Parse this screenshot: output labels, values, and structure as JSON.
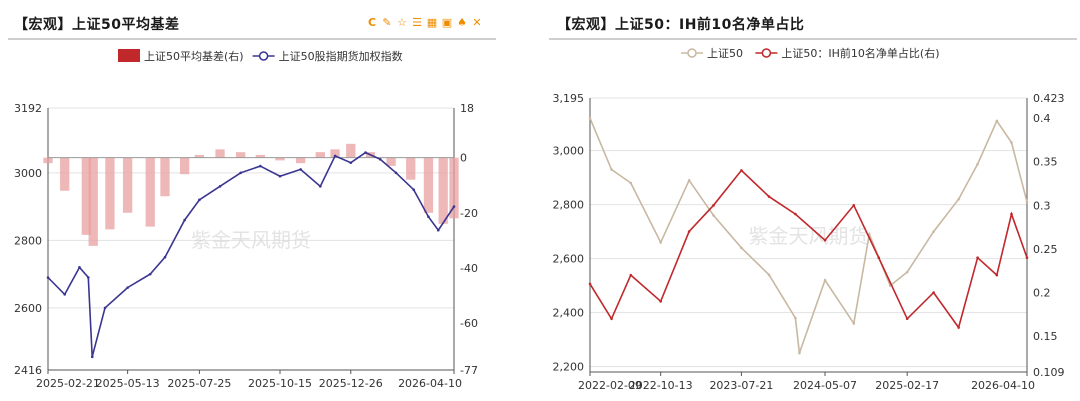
{
  "left": {
    "title": "【宏观】上证50平均基差",
    "toolbar": [
      {
        "name": "refresh-icon",
        "glyph": "C"
      },
      {
        "name": "edit-icon",
        "glyph": "✎"
      },
      {
        "name": "star-icon",
        "glyph": "☆"
      },
      {
        "name": "list-icon",
        "glyph": "☰"
      },
      {
        "name": "table-icon",
        "glyph": "▦"
      },
      {
        "name": "image-download-icon",
        "glyph": "▣"
      },
      {
        "name": "bell-icon",
        "glyph": "♠"
      },
      {
        "name": "expand-icon",
        "glyph": "✕"
      }
    ],
    "chart_data": {
      "type": "bar+line",
      "title": "【宏观】上证50平均基差",
      "watermark": "紫金天风期货",
      "legend_position": "top-center",
      "x_ticks": [
        "2025-02-21",
        "2025-05-13",
        "2025-07-25",
        "2025-10-15",
        "2025-12-26",
        "2026-04-10"
      ],
      "left_axis": {
        "ticks": [
          "3192",
          "3000",
          "2800",
          "2600",
          "2416"
        ],
        "ylim": [
          2416,
          3192
        ]
      },
      "right_axis": {
        "ticks": [
          "18",
          "0",
          "-20",
          "-40",
          "-60",
          "-77"
        ],
        "ylim": [
          -77,
          18
        ]
      },
      "series": [
        {
          "name": "上证50平均基差(右)",
          "type": "bar",
          "axis": "right",
          "color": "#e8a0a0",
          "x": [
            "2025-02-21",
            "2025-03-10",
            "2025-04-01",
            "2025-04-08",
            "2025-04-25",
            "2025-05-13",
            "2025-06-05",
            "2025-06-20",
            "2025-07-10",
            "2025-07-25",
            "2025-08-15",
            "2025-09-05",
            "2025-09-25",
            "2025-10-15",
            "2025-11-05",
            "2025-11-25",
            "2025-12-10",
            "2025-12-26",
            "2026-01-15",
            "2026-02-05",
            "2026-02-25",
            "2026-03-15",
            "2026-03-30",
            "2026-04-10"
          ],
          "values": [
            -2,
            -12,
            -28,
            -32,
            -26,
            -20,
            -25,
            -14,
            -6,
            1,
            3,
            2,
            1,
            -1,
            -2,
            2,
            3,
            5,
            2,
            -3,
            -8,
            -20,
            -24,
            -22
          ]
        },
        {
          "name": "上证50股指期货加权指数",
          "type": "line",
          "axis": "left",
          "color": "#3a3590",
          "x": [
            "2025-02-21",
            "2025-03-10",
            "2025-03-25",
            "2025-04-03",
            "2025-04-07",
            "2025-04-20",
            "2025-05-13",
            "2025-06-05",
            "2025-06-20",
            "2025-07-10",
            "2025-07-25",
            "2025-08-15",
            "2025-09-05",
            "2025-09-25",
            "2025-10-15",
            "2025-11-05",
            "2025-11-25",
            "2025-12-10",
            "2025-12-26",
            "2026-01-10",
            "2026-01-25",
            "2026-02-10",
            "2026-02-28",
            "2026-03-15",
            "2026-03-25",
            "2026-04-10"
          ],
          "values": [
            2690,
            2640,
            2720,
            2690,
            2455,
            2600,
            2660,
            2700,
            2750,
            2860,
            2920,
            2960,
            3000,
            3020,
            2990,
            3010,
            2960,
            3050,
            3030,
            3060,
            3040,
            3000,
            2950,
            2870,
            2830,
            2900
          ]
        }
      ]
    }
  },
  "right": {
    "title": "【宏观】上证50：IH前10名净单占比",
    "chart_data": {
      "type": "line",
      "title": "【宏观】上证50：IH前10名净单占比",
      "watermark": "紫金天风期货",
      "legend_position": "top-center",
      "x_ticks": [
        "2022-02-09",
        "2022-10-13",
        "2023-07-21",
        "2024-05-07",
        "2025-02-17",
        "2026-04-10"
      ],
      "left_axis": {
        "ticks": [
          "3,195",
          "3,000",
          "2,800",
          "2,600",
          "2,400",
          "2,200"
        ],
        "ylim": [
          2180,
          3195
        ]
      },
      "right_axis": {
        "ticks": [
          "0.423",
          "0.4",
          "0.35",
          "0.3",
          "0.25",
          "0.2",
          "0.15",
          "0.109"
        ],
        "ylim": [
          0.109,
          0.423
        ]
      },
      "series": [
        {
          "name": "上证50",
          "axis": "left",
          "color": "#c8b8a2",
          "x": [
            "2022-02-09",
            "2022-04-25",
            "2022-07-01",
            "2022-10-13",
            "2023-01-20",
            "2023-04-15",
            "2023-07-21",
            "2023-10-25",
            "2024-01-25",
            "2024-02-08",
            "2024-05-07",
            "2024-08-15",
            "2024-10-08",
            "2024-12-20",
            "2025-02-17",
            "2025-05-20",
            "2025-08-15",
            "2025-10-20",
            "2025-12-26",
            "2026-02-15",
            "2026-04-10"
          ],
          "values": [
            3120,
            2930,
            2880,
            2660,
            2890,
            2760,
            2640,
            2540,
            2380,
            2250,
            2520,
            2360,
            2690,
            2500,
            2550,
            2700,
            2820,
            2950,
            3110,
            3030,
            2810
          ]
        },
        {
          "name": "上证50：IH前10名净单占比(右)",
          "axis": "right",
          "color": "#c0282b",
          "x": [
            "2022-02-09",
            "2022-04-25",
            "2022-07-01",
            "2022-10-13",
            "2023-01-20",
            "2023-04-15",
            "2023-07-21",
            "2023-10-25",
            "2024-01-25",
            "2024-05-07",
            "2024-08-15",
            "2024-11-10",
            "2025-02-17",
            "2025-05-20",
            "2025-08-15",
            "2025-10-20",
            "2025-12-26",
            "2026-02-15",
            "2026-04-10"
          ],
          "values": [
            0.21,
            0.17,
            0.22,
            0.19,
            0.27,
            0.3,
            0.34,
            0.31,
            0.29,
            0.26,
            0.3,
            0.24,
            0.17,
            0.2,
            0.16,
            0.24,
            0.22,
            0.29,
            0.24
          ]
        }
      ]
    }
  }
}
